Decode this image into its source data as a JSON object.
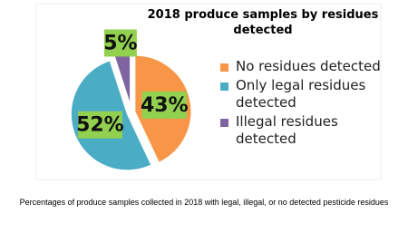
{
  "chart_data": {
    "type": "pie",
    "title": "2018 produce samples by residues detected",
    "categories": [
      "No residues detected",
      "Only legal residues detected",
      "Illegal residues detected"
    ],
    "values": [
      43,
      52,
      5
    ],
    "value_labels": [
      "43%",
      "52%",
      "5%"
    ],
    "colors": [
      "#f79646",
      "#4bacc6",
      "#8064a2"
    ],
    "label_box_color": "#92d050",
    "legend": "right",
    "caption": "Percentages of produce samples collected in 2018 with legal, illegal, or no detected pesticide residues"
  }
}
